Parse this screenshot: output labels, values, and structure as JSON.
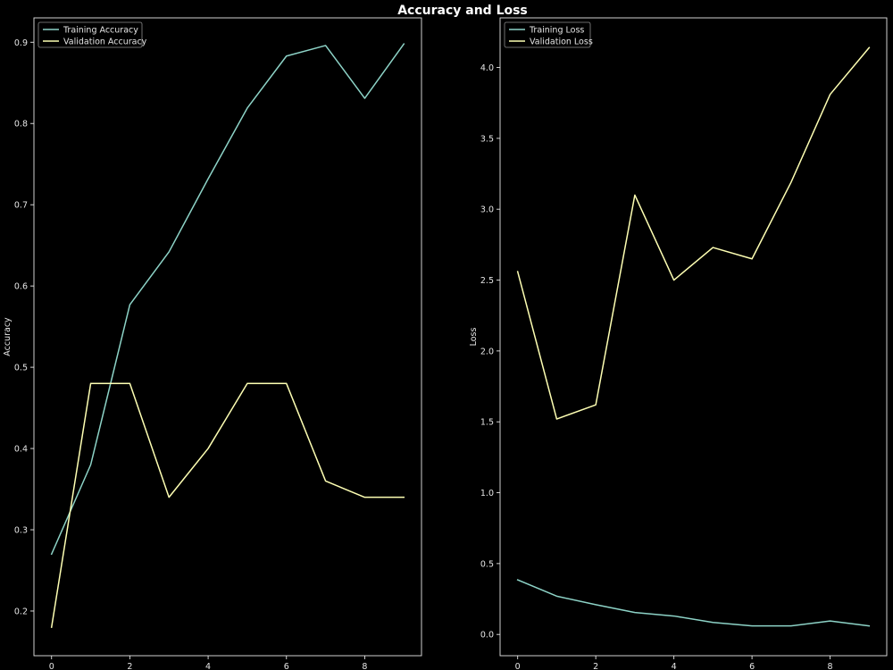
{
  "figure": {
    "title": "Accuracy and Loss",
    "background": "#000000",
    "foreground": "#e6e6e6"
  },
  "chart_data": [
    {
      "type": "line",
      "title": "",
      "xlabel": "",
      "ylabel": "Accuracy",
      "x": [
        0,
        1,
        2,
        3,
        4,
        5,
        6,
        7,
        8,
        9
      ],
      "xlim": [
        -0.45,
        9.45
      ],
      "ylim": [
        0.145,
        0.93
      ],
      "xticks": [
        0,
        2,
        4,
        6,
        8
      ],
      "yticks": [
        0.2,
        0.3,
        0.4,
        0.5,
        0.6,
        0.7,
        0.8,
        0.9
      ],
      "grid": false,
      "legend_position": "upper-left",
      "series": [
        {
          "name": "Training Accuracy",
          "color": "#8dd3c7",
          "values": [
            0.27,
            0.38,
            0.577,
            0.642,
            0.732,
            0.819,
            0.883,
            0.896,
            0.831,
            0.898
          ]
        },
        {
          "name": "Validation Accuracy",
          "color": "#feffb3",
          "values": [
            0.18,
            0.48,
            0.48,
            0.34,
            0.4,
            0.48,
            0.48,
            0.36,
            0.34,
            0.34
          ]
        }
      ]
    },
    {
      "type": "line",
      "title": "",
      "xlabel": "",
      "ylabel": "Loss",
      "x": [
        0,
        1,
        2,
        3,
        4,
        5,
        6,
        7,
        8,
        9
      ],
      "xlim": [
        -0.45,
        9.45
      ],
      "ylim": [
        -0.15,
        4.35
      ],
      "xticks": [
        0,
        2,
        4,
        6,
        8
      ],
      "yticks": [
        0.0,
        0.5,
        1.0,
        1.5,
        2.0,
        2.5,
        3.0,
        3.5,
        4.0
      ],
      "grid": false,
      "legend_position": "upper-left",
      "series": [
        {
          "name": "Training Loss",
          "color": "#8dd3c7",
          "values": [
            0.385,
            0.27,
            0.21,
            0.155,
            0.13,
            0.085,
            0.06,
            0.06,
            0.095,
            0.06
          ]
        },
        {
          "name": "Validation Loss",
          "color": "#feffb3",
          "values": [
            2.56,
            1.52,
            1.62,
            3.1,
            2.5,
            2.73,
            2.65,
            3.19,
            3.81,
            4.14
          ]
        }
      ]
    }
  ]
}
